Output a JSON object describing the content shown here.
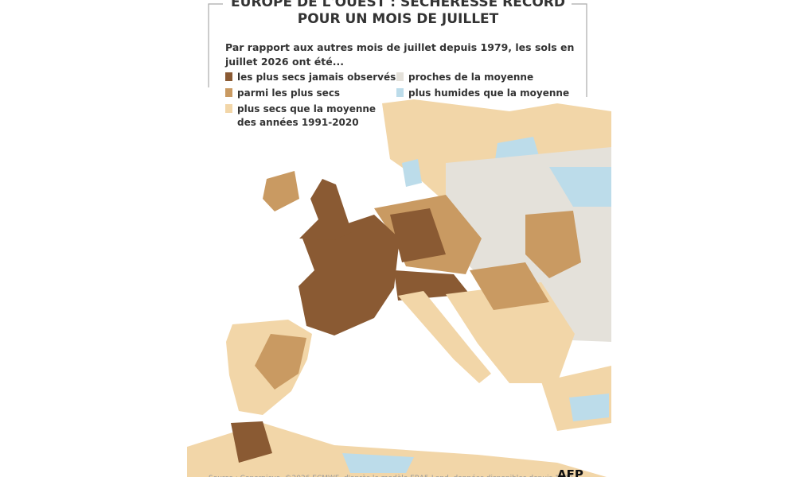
{
  "header": {
    "title_lines": [
      "EUROPE DE L'OUEST : SÉCHERESSE RECORD",
      "POUR UN MOIS DE JUILLET"
    ]
  },
  "subtitle_lines": [
    "Par rapport aux autres mois de juillet depuis 1979, les sols en",
    "juillet 2026 ont été..."
  ],
  "legend": [
    {
      "lines": [
        "les plus secs jamais observés"
      ],
      "color": "#8a5a33"
    },
    {
      "lines": [
        "parmi les plus secs"
      ],
      "color": "#c99a62"
    },
    {
      "lines": [
        "plus secs que la moyenne",
        "des années 1991-2020"
      ],
      "color": "#f2d6a8"
    },
    {
      "lines": [
        "proches de la moyenne"
      ],
      "color": "#e4e1da"
    },
    {
      "lines": [
        "plus humides que la moyenne"
      ],
      "color": "#bcdcea"
    }
  ],
  "source": "Source : Copernicus, ©2026 ECMWF, d'après le modèle ERA5-Land, données disponibles depuis 1979",
  "logo": "AFP"
}
